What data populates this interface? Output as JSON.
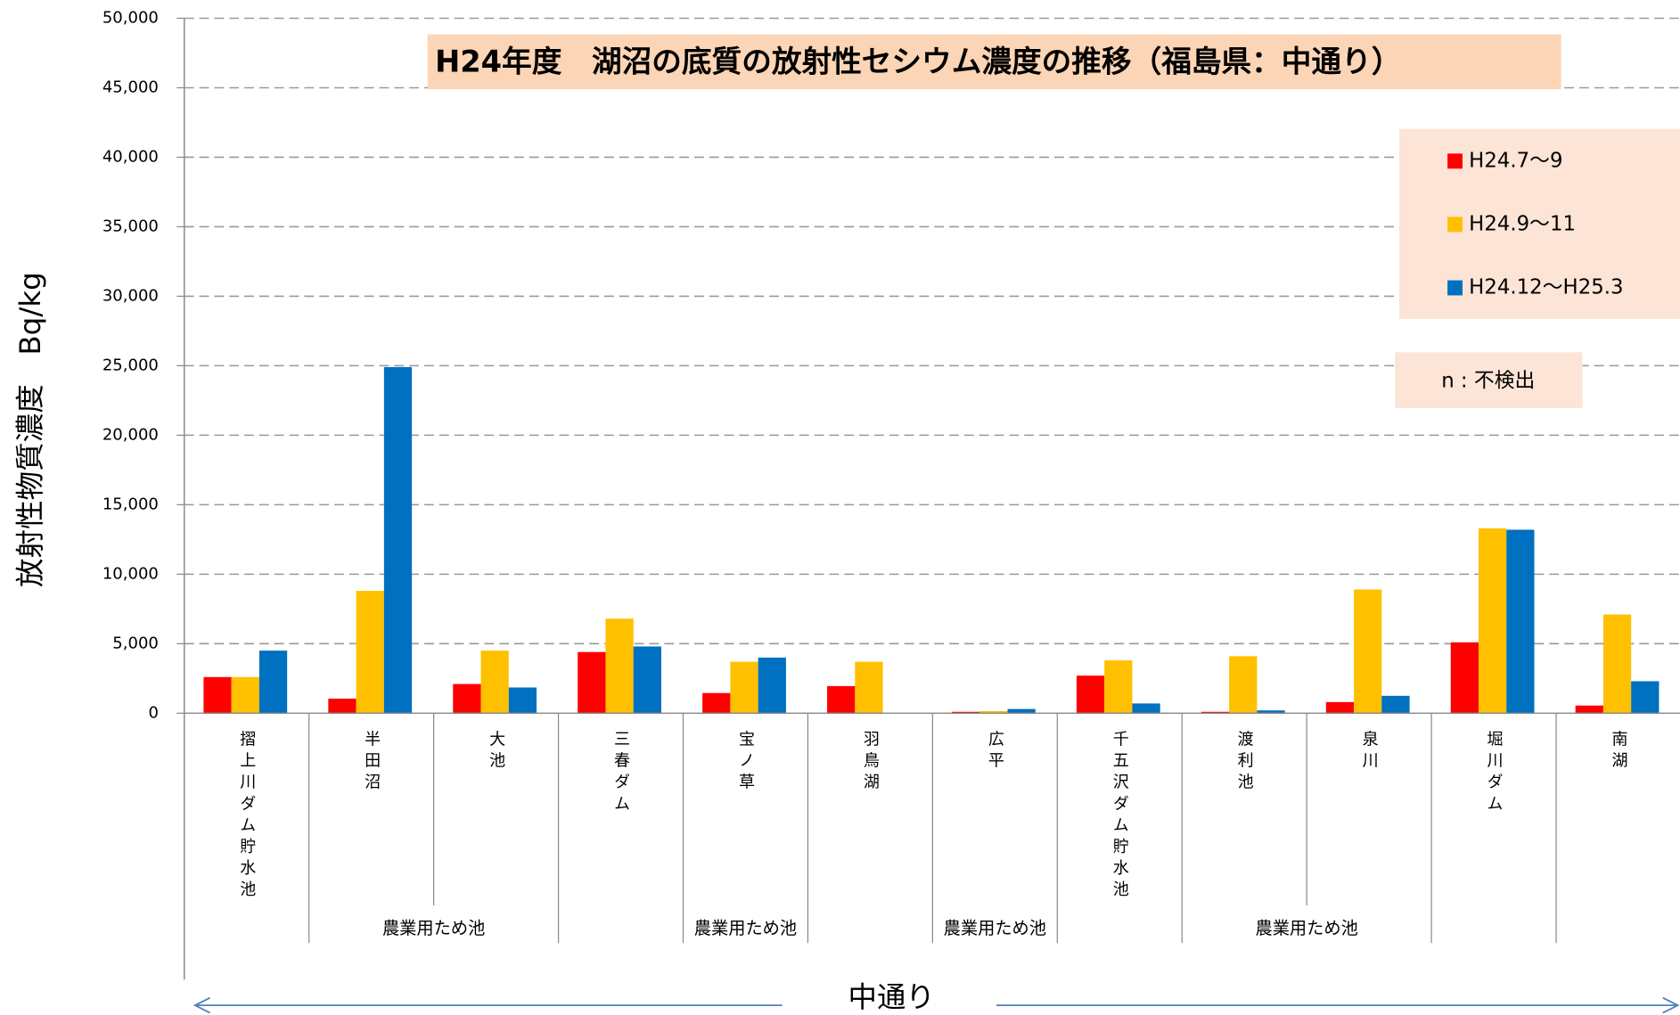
{
  "chart_data": {
    "type": "bar",
    "title": "H24年度　湖沼の底質の放射性セシウム濃度の推移（福島県：中通り）",
    "y_label": "放射性物質濃度　Bq/kg",
    "x_label": "中通り",
    "note": "n : 不検出",
    "categories": [
      "摺上川ダム貯水池",
      "半田沼",
      "大池",
      "三春ダム",
      "宝ノ草",
      "羽鳥湖",
      "広平",
      "千五沢ダム貯水池",
      "渡利池",
      "泉川",
      "堀川ダム",
      "南湖"
    ],
    "groups": [
      "農業用ため池",
      "農業用ため池",
      "農業用ため池",
      "農業用ため池"
    ],
    "series": [
      {
        "name": "H24.7〜9",
        "color": "#ff0000",
        "values": [
          2600,
          1050,
          2100,
          4400,
          1450,
          1950,
          100,
          2700,
          100,
          800,
          5100,
          550
        ]
      },
      {
        "name": "H24.9〜11",
        "color": "#ffc000",
        "values": [
          2600,
          8800,
          4500,
          6800,
          3700,
          3700,
          150,
          3800,
          4100,
          8900,
          13300,
          7100
        ]
      },
      {
        "name": "H24.12〜H25.3",
        "color": "#0070c0",
        "values": [
          4500,
          24900,
          1850,
          4800,
          4000,
          null,
          300,
          700,
          200,
          1250,
          13200,
          2300
        ]
      }
    ],
    "ylim": [
      0,
      50000
    ],
    "yticks": [
      0,
      {
        "value": 5000,
        "label": "5,000"
      },
      {
        "value": 10000,
        "label": "10,000"
      },
      {
        "value": 15000,
        "label": "15,000"
      },
      {
        "value": 20000,
        "label": "20,000"
      },
      {
        "value": 25000,
        "label": "25,000"
      },
      {
        "value": 30000,
        "label": "30,000"
      },
      {
        "value": 35000,
        "label": "35,000"
      },
      {
        "value": 40000,
        "label": "40,000"
      },
      {
        "value": 45000,
        "label": "45,000"
      },
      {
        "value": 50000,
        "label": "50,000"
      }
    ],
    "grid": true
  }
}
